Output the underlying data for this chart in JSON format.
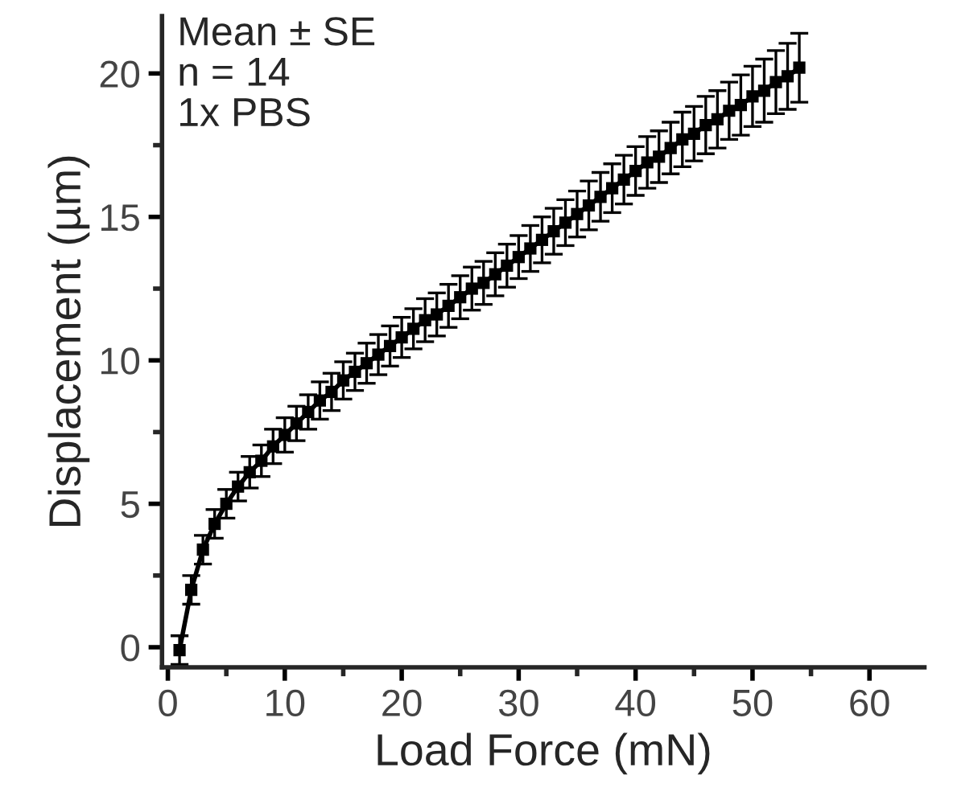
{
  "chart_data": {
    "type": "line",
    "xlabel": "Load Force (mN)",
    "ylabel": "Displacement (µm)",
    "annotations": [
      "Mean ± SE\nn = 14\n1x PBS"
    ],
    "x": [
      1,
      2,
      3,
      4,
      5,
      6,
      7,
      8,
      9,
      10,
      11,
      12,
      13,
      14,
      15,
      16,
      17,
      18,
      19,
      20,
      21,
      22,
      23,
      24,
      25,
      26,
      27,
      28,
      29,
      30,
      31,
      32,
      33,
      34,
      35,
      36,
      37,
      38,
      39,
      40,
      41,
      42,
      43,
      44,
      45,
      46,
      47,
      48,
      49,
      50,
      51,
      52,
      53,
      54
    ],
    "series": [
      {
        "color": "#000000",
        "values": [
          -0.1,
          2.0,
          3.4,
          4.3,
          5.0,
          5.6,
          6.1,
          6.5,
          7.0,
          7.4,
          7.8,
          8.2,
          8.6,
          8.9,
          9.3,
          9.6,
          9.9,
          10.2,
          10.5,
          10.8,
          11.1,
          11.4,
          11.6,
          11.9,
          12.2,
          12.5,
          12.7,
          13.0,
          13.3,
          13.6,
          13.9,
          14.2,
          14.5,
          14.8,
          15.1,
          15.4,
          15.7,
          16.0,
          16.3,
          16.6,
          16.9,
          17.1,
          17.4,
          17.7,
          17.9,
          18.2,
          18.4,
          18.7,
          18.9,
          19.2,
          19.4,
          19.7,
          19.9,
          20.2
        ],
        "errors": [
          0.5,
          0.5,
          0.5,
          0.5,
          0.5,
          0.5,
          0.55,
          0.55,
          0.6,
          0.6,
          0.6,
          0.6,
          0.65,
          0.65,
          0.65,
          0.65,
          0.7,
          0.7,
          0.7,
          0.7,
          0.7,
          0.75,
          0.75,
          0.75,
          0.75,
          0.75,
          0.75,
          0.75,
          0.75,
          0.75,
          0.8,
          0.8,
          0.8,
          0.8,
          0.8,
          0.85,
          0.85,
          0.85,
          0.85,
          0.85,
          0.9,
          0.9,
          0.9,
          0.95,
          0.95,
          1.0,
          1.0,
          1.0,
          1.05,
          1.05,
          1.1,
          1.1,
          1.15,
          1.2
        ]
      }
    ],
    "xlim": [
      -0.5,
      64.7
    ],
    "ylim": [
      -0.7,
      22
    ],
    "xticks": [
      0,
      10,
      20,
      30,
      40,
      50,
      60
    ],
    "yticks": [
      0,
      5,
      10,
      15,
      20
    ],
    "marker": "square",
    "line_style": "solid"
  }
}
